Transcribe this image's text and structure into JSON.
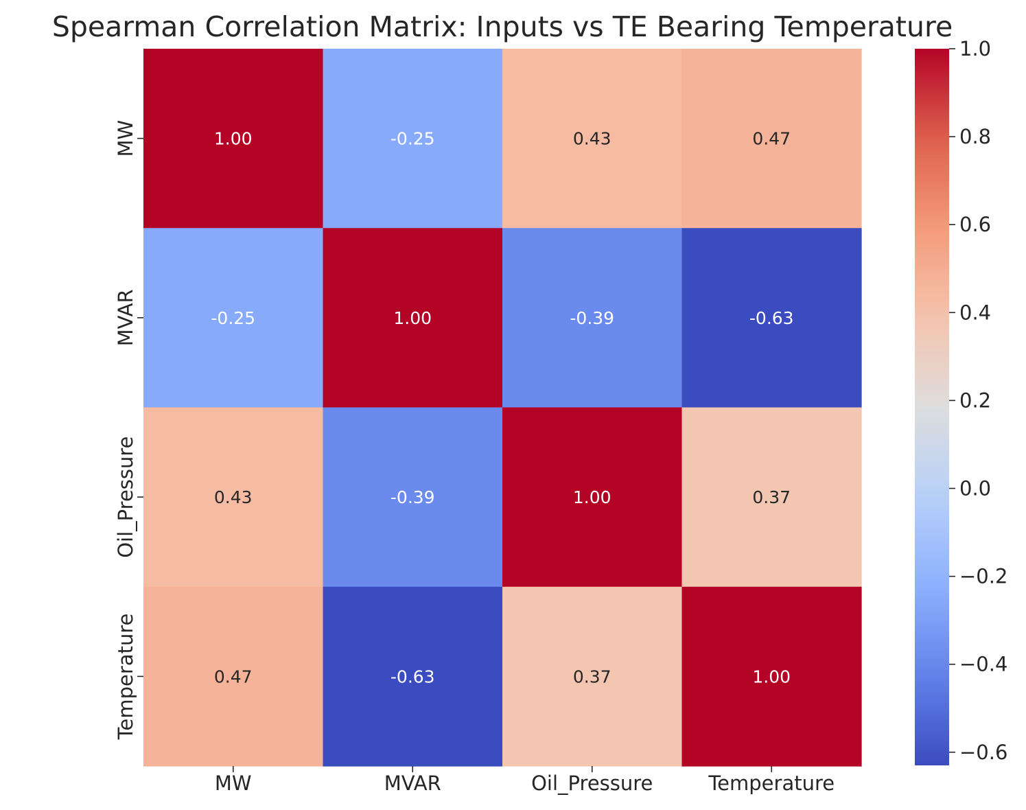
{
  "chart_data": {
    "type": "heatmap",
    "title": "Spearman Correlation Matrix: Inputs vs TE Bearing Temperature",
    "x_categories": [
      "MW",
      "MVAR",
      "Oil_Pressure",
      "Temperature"
    ],
    "y_categories": [
      "MW",
      "MVAR",
      "Oil_Pressure",
      "Temperature"
    ],
    "values": [
      [
        1.0,
        -0.25,
        0.43,
        0.47
      ],
      [
        -0.25,
        1.0,
        -0.39,
        -0.63
      ],
      [
        0.43,
        -0.39,
        1.0,
        0.37
      ],
      [
        0.47,
        -0.63,
        0.37,
        1.0
      ]
    ],
    "cell_labels": [
      [
        "1.00",
        "-0.25",
        "0.43",
        "0.47"
      ],
      [
        "-0.25",
        "1.00",
        "-0.39",
        "-0.63"
      ],
      [
        "0.43",
        "-0.39",
        "1.00",
        "0.37"
      ],
      [
        "0.47",
        "-0.63",
        "0.37",
        "1.00"
      ]
    ],
    "colormap": "coolwarm",
    "colorbar": {
      "range": [
        -0.63,
        1.0
      ],
      "ticks": [
        1.0,
        0.8,
        0.6,
        0.4,
        0.2,
        0.0,
        -0.2,
        -0.4,
        -0.6
      ],
      "tick_labels": [
        "1.0",
        "0.8",
        "0.6",
        "0.4",
        "0.2",
        "0.0",
        "−0.2",
        "−0.4",
        "−0.6"
      ],
      "placement": "right"
    }
  }
}
